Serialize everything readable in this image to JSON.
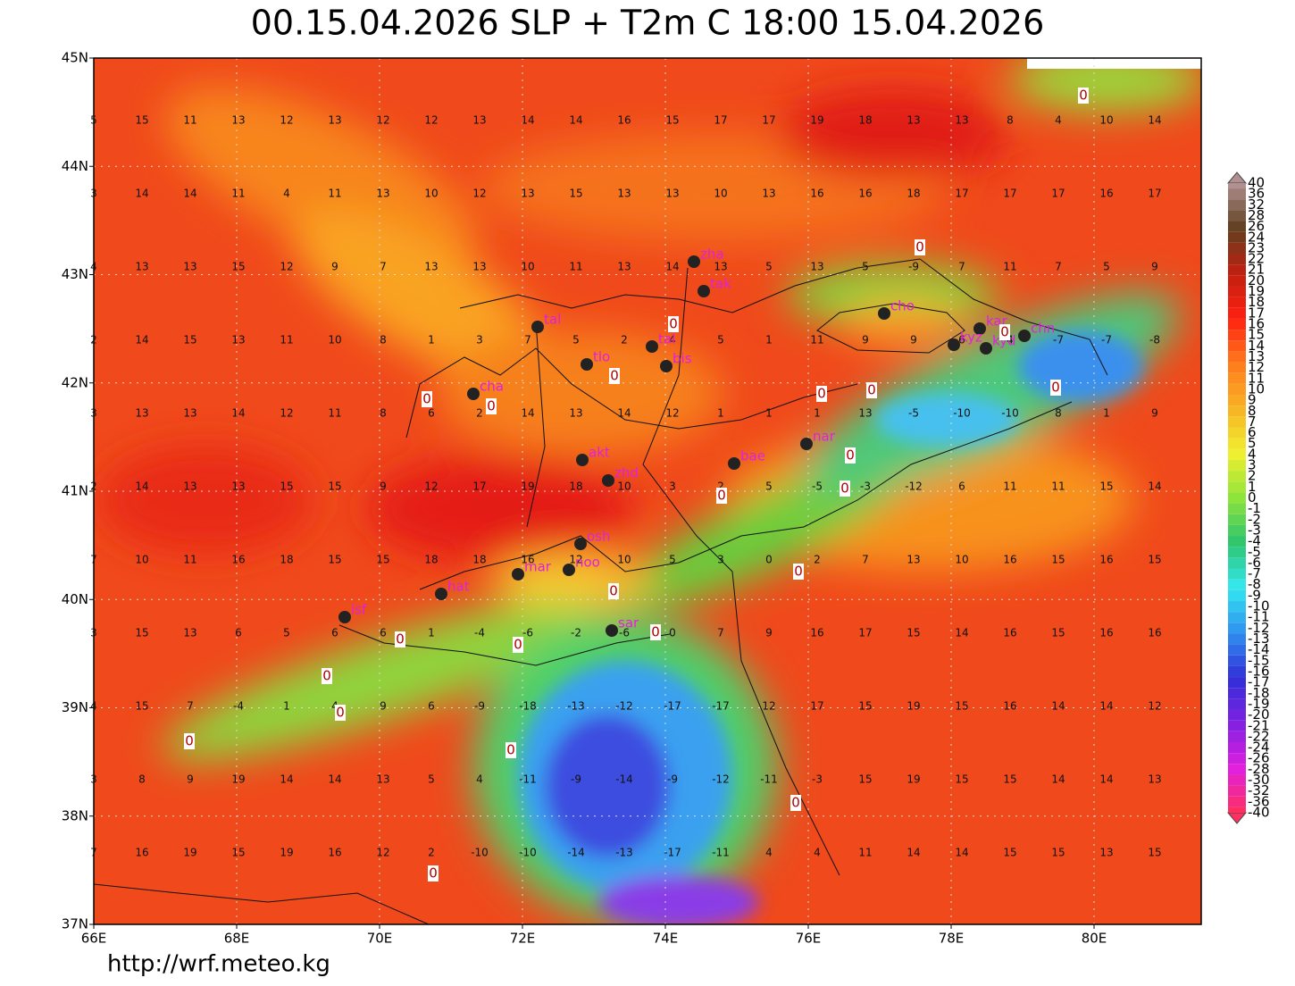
{
  "header": {
    "title": "00.15.04.2026 SLP + T2m C 18:00 15.04.2026"
  },
  "map": {
    "lat_labels": [
      "37N",
      "38N",
      "39N",
      "40N",
      "41N",
      "42N",
      "43N",
      "44N",
      "45N"
    ],
    "lon_labels": [
      "66E",
      "68E",
      "70E",
      "72E",
      "74E",
      "76E",
      "78E",
      "80E"
    ],
    "temperature_grid": [
      [
        5,
        15,
        11,
        13,
        12,
        13,
        12,
        12,
        13,
        14,
        14,
        16,
        15,
        17,
        17,
        19,
        18,
        13,
        13,
        8,
        4,
        10,
        14
      ],
      [
        3,
        14,
        14,
        11,
        4,
        11,
        13,
        10,
        12,
        13,
        15,
        13,
        13,
        10,
        13,
        16,
        16,
        18,
        17,
        17,
        17,
        16,
        17
      ],
      [
        4,
        13,
        13,
        15,
        12,
        9,
        7,
        13,
        13,
        10,
        11,
        13,
        14,
        13,
        5,
        13,
        5,
        -9,
        7,
        11,
        7,
        5,
        9
      ],
      [
        2,
        14,
        15,
        13,
        11,
        10,
        8,
        1,
        3,
        7,
        5,
        2,
        4,
        5,
        1,
        11,
        9,
        9,
        6,
        4,
        -7,
        -7,
        -8
      ],
      [
        3,
        13,
        13,
        14,
        12,
        11,
        8,
        6,
        2,
        14,
        13,
        14,
        12,
        1,
        1,
        1,
        13,
        -5,
        -10,
        -10,
        8,
        1,
        9
      ],
      [
        2,
        14,
        13,
        13,
        15,
        15,
        9,
        12,
        17,
        19,
        18,
        10,
        3,
        2,
        5,
        -5,
        -3,
        -12,
        6,
        11,
        11,
        15,
        14
      ],
      [
        7,
        10,
        11,
        16,
        18,
        15,
        15,
        18,
        18,
        16,
        12,
        10,
        5,
        3,
        0,
        2,
        7,
        13,
        10,
        16,
        15,
        16,
        15
      ],
      [
        3,
        15,
        13,
        6,
        5,
        6,
        6,
        1,
        -4,
        -6,
        -2,
        -6,
        0,
        7,
        9,
        16,
        17,
        15,
        14,
        16,
        15,
        16,
        16
      ],
      [
        4,
        15,
        7,
        -4,
        1,
        4,
        9,
        6,
        -9,
        -18,
        -13,
        -12,
        -17,
        -17,
        12,
        17,
        15,
        19,
        15,
        16,
        14,
        14,
        12
      ],
      [
        3,
        8,
        9,
        19,
        14,
        14,
        13,
        5,
        4,
        -11,
        -9,
        -14,
        -9,
        -12,
        -11,
        -3,
        15,
        19,
        15,
        15,
        14,
        14,
        13
      ],
      [
        7,
        16,
        19,
        15,
        19,
        16,
        12,
        2,
        -10,
        -10,
        -14,
        -13,
        -17,
        -11,
        4,
        4,
        11,
        14,
        14,
        15,
        15,
        13,
        15
      ]
    ],
    "stations": [
      "zha",
      "tak",
      "tal",
      "tlo",
      "tal",
      "bis",
      "cho",
      "kar",
      "kyz",
      "kyd",
      "chn",
      "cha",
      "nar",
      "bae",
      "akt",
      "zhd",
      "osh",
      "mar",
      "noo",
      "hat",
      "isf",
      "sar"
    ],
    "contour_labels": [
      "0",
      "0",
      "0",
      "0",
      "0",
      "0",
      "0",
      "0",
      "0",
      "0",
      "0",
      "0",
      "0",
      "0",
      "0",
      "0",
      "0",
      "0",
      "0",
      "0",
      "0",
      "0",
      "0",
      "0"
    ]
  },
  "colorbar": {
    "labels": [
      40,
      36,
      32,
      28,
      26,
      24,
      23,
      22,
      21,
      20,
      19,
      18,
      17,
      16,
      15,
      14,
      13,
      12,
      11,
      10,
      9,
      8,
      7,
      6,
      5,
      4,
      3,
      2,
      1,
      0,
      -1,
      -2,
      -3,
      -4,
      -5,
      -6,
      -7,
      -8,
      -9,
      -10,
      -11,
      -12,
      -13,
      -14,
      -15,
      -16,
      -17,
      -18,
      -19,
      -20,
      -21,
      -22,
      -24,
      -26,
      -28,
      -30,
      -32,
      -36,
      -40
    ]
  },
  "footer": {
    "url": "http://wrf.meteo.kg"
  }
}
